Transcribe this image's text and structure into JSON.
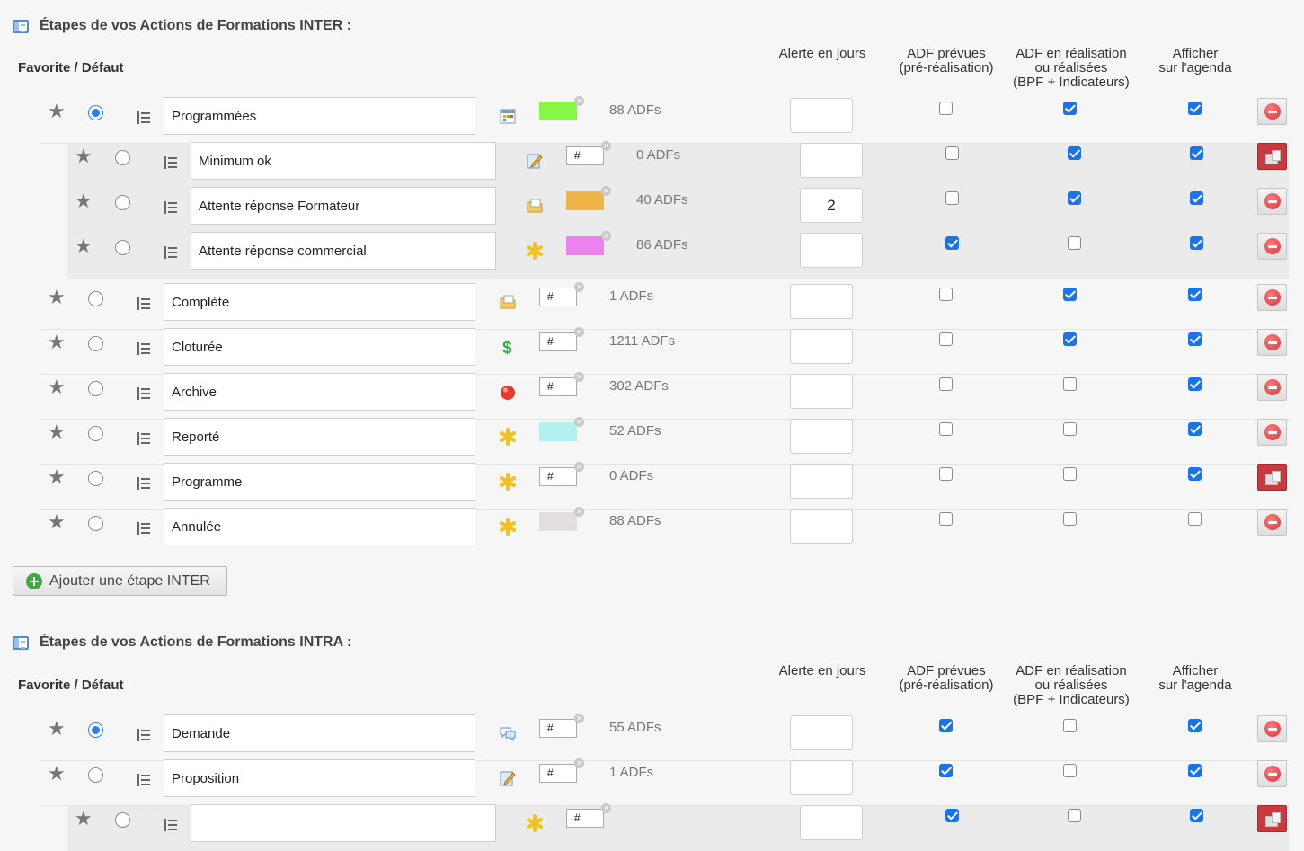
{
  "inter": {
    "title": "Étapes de vos Actions de Formations INTER :",
    "fav_label": "Favorite / Défaut",
    "col_alert": "Alerte en jours",
    "col_prevues": "ADF prévues\n(pré-réalisation)",
    "col_realisation": "ADF en réalisation\nou réalisées\n(BPF + Indicateurs)",
    "col_agenda": "Afficher\nsur l'agenda",
    "add_button": "Ajouter une étape INTER",
    "rows": [
      {
        "name": "Programmées",
        "icon": "calendar-icon",
        "color": "#86f745",
        "hex": "",
        "count": "88 ADFs",
        "alert": "",
        "prevues": false,
        "realisation": true,
        "agenda": true,
        "default": true,
        "child": false,
        "action": "delete"
      },
      {
        "name": "Minimum ok",
        "icon": "edit-icon",
        "color": "",
        "hex": "#",
        "count": "0 ADFs",
        "alert": "",
        "prevues": false,
        "realisation": true,
        "agenda": true,
        "default": false,
        "child": true,
        "action": "erase"
      },
      {
        "name": "Attente réponse Formateur",
        "icon": "folder-icon",
        "color": "#f0b548",
        "hex": "",
        "count": "40 ADFs",
        "alert": "2",
        "prevues": false,
        "realisation": true,
        "agenda": true,
        "default": false,
        "child": true,
        "action": "delete"
      },
      {
        "name": "Attente réponse commercial",
        "icon": "asterisk-icon",
        "color": "#ee82ee",
        "hex": "",
        "count": "86 ADFs",
        "alert": "",
        "prevues": true,
        "realisation": false,
        "agenda": true,
        "default": false,
        "child": true,
        "action": "delete"
      },
      {
        "name": "Complète",
        "icon": "folder-icon",
        "color": "",
        "hex": "#",
        "count": "1 ADFs",
        "alert": "",
        "prevues": false,
        "realisation": true,
        "agenda": true,
        "default": false,
        "child": false,
        "action": "delete"
      },
      {
        "name": "Cloturée",
        "icon": "dollar-icon",
        "color": "",
        "hex": "#",
        "count": "1211 ADFs",
        "alert": "",
        "prevues": false,
        "realisation": true,
        "agenda": true,
        "default": false,
        "child": false,
        "action": "delete"
      },
      {
        "name": "Archive",
        "icon": "red-dot-icon",
        "color": "",
        "hex": "#",
        "count": "302 ADFs",
        "alert": "",
        "prevues": false,
        "realisation": false,
        "agenda": true,
        "default": false,
        "child": false,
        "action": "delete"
      },
      {
        "name": "Reporté",
        "icon": "asterisk-icon",
        "color": "#b2f2ee",
        "hex": "",
        "count": "52 ADFs",
        "alert": "",
        "prevues": false,
        "realisation": false,
        "agenda": true,
        "default": false,
        "child": false,
        "action": "delete"
      },
      {
        "name": "Programme",
        "icon": "asterisk-icon",
        "color": "",
        "hex": "#",
        "count": "0 ADFs",
        "alert": "",
        "prevues": false,
        "realisation": false,
        "agenda": true,
        "default": false,
        "child": false,
        "action": "erase"
      },
      {
        "name": "Annulée",
        "icon": "asterisk-icon",
        "color": "#e3dfe0",
        "hex": "",
        "count": "88 ADFs",
        "alert": "",
        "prevues": false,
        "realisation": false,
        "agenda": false,
        "default": false,
        "child": false,
        "action": "delete"
      }
    ]
  },
  "intra": {
    "title": "Étapes de vos Actions de Formations INTRA :",
    "fav_label": "Favorite / Défaut",
    "col_alert": "Alerte en jours",
    "col_prevues": "ADF prévues\n(pré-réalisation)",
    "col_realisation": "ADF en réalisation\nou réalisées\n(BPF + Indicateurs)",
    "col_agenda": "Afficher\nsur l'agenda",
    "rows": [
      {
        "name": "Demande",
        "icon": "chat-icon",
        "color": "",
        "hex": "#",
        "count": "55 ADFs",
        "alert": "",
        "prevues": true,
        "realisation": false,
        "agenda": true,
        "default": true,
        "child": false,
        "action": "delete"
      },
      {
        "name": "Proposition",
        "icon": "edit-icon",
        "color": "",
        "hex": "#",
        "count": "1 ADFs",
        "alert": "",
        "prevues": true,
        "realisation": false,
        "agenda": true,
        "default": false,
        "child": false,
        "action": "delete"
      },
      {
        "name": "",
        "icon": "asterisk-icon",
        "color": "",
        "hex": "#",
        "count": "",
        "alert": "",
        "prevues": true,
        "realisation": false,
        "agenda": true,
        "default": false,
        "child": true,
        "action": "erase"
      }
    ]
  }
}
